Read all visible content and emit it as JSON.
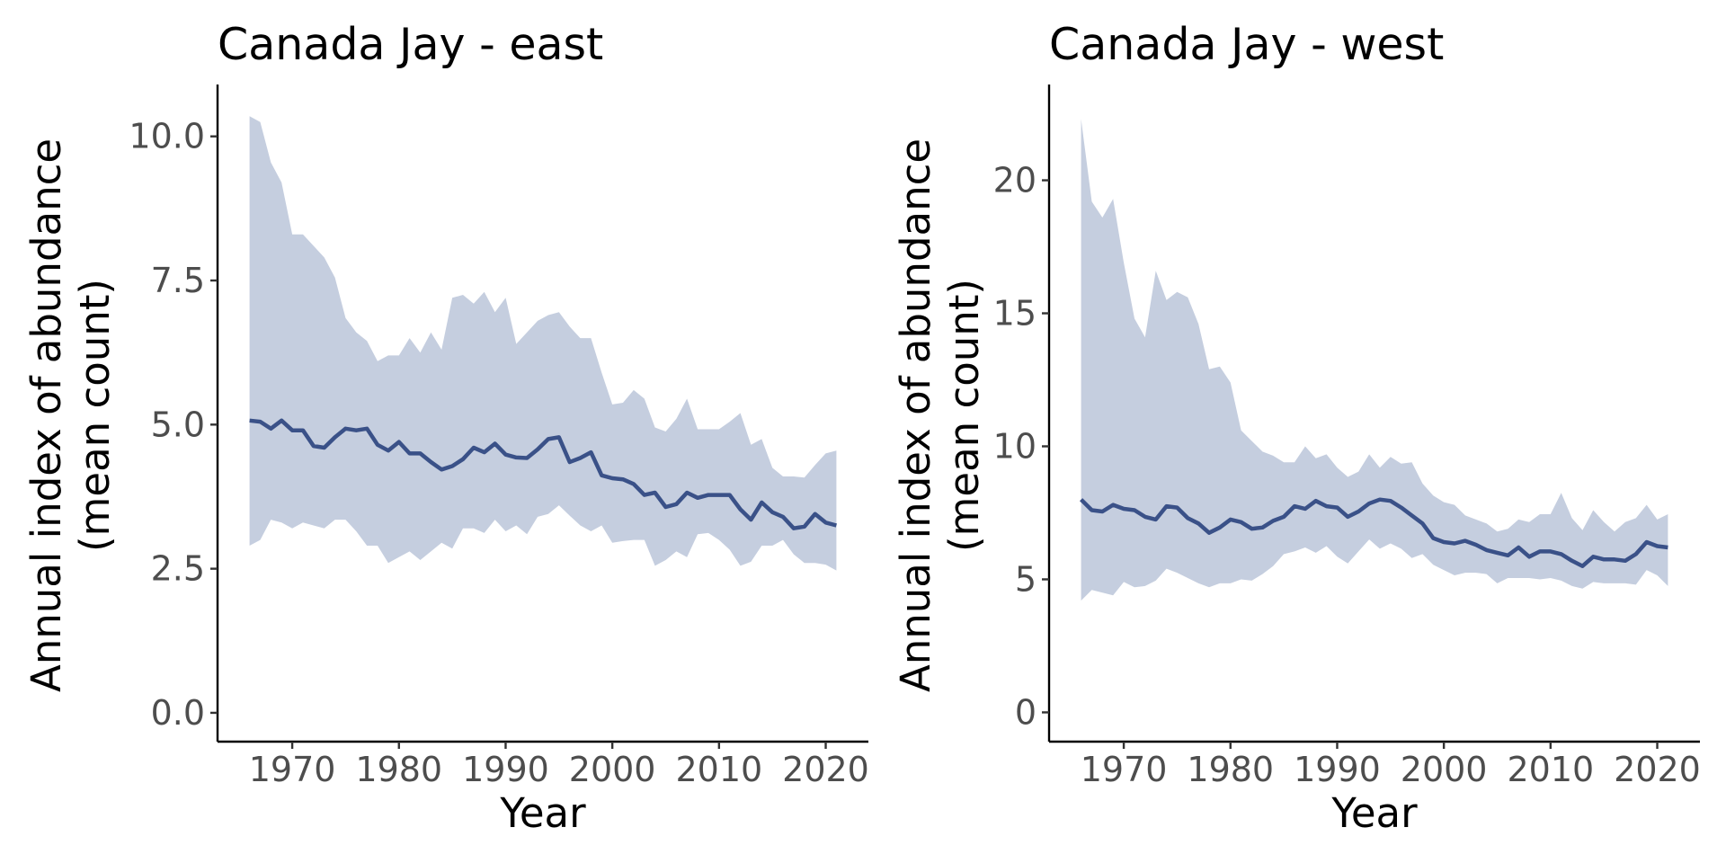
{
  "colors": {
    "band": "#c5cedf",
    "line": "#3a5188",
    "axis": "#000000",
    "tick_text": "#4d4d4d"
  },
  "chart_data": [
    {
      "type": "line",
      "title": "Canada Jay - east",
      "xlabel": "Year",
      "ylabel": [
        "Annual index of abundance",
        "(mean count)"
      ],
      "xlim": [
        1963,
        2024
      ],
      "ylim": [
        -0.5,
        10.9
      ],
      "xticks": [
        1970,
        1980,
        1990,
        2000,
        2010,
        2020
      ],
      "xtick_labels": [
        "1970",
        "1980",
        "1990",
        "2000",
        "2010",
        "2020"
      ],
      "yticks": [
        0,
        2.5,
        5,
        7.5,
        10
      ],
      "ytick_labels": [
        "0.0",
        "2.5",
        "5.0",
        "7.5",
        "10.0"
      ],
      "grid": false,
      "legend": "none",
      "x": [
        1966,
        1967,
        1968,
        1969,
        1970,
        1971,
        1972,
        1973,
        1974,
        1975,
        1976,
        1977,
        1978,
        1979,
        1980,
        1981,
        1982,
        1983,
        1984,
        1985,
        1986,
        1987,
        1988,
        1989,
        1990,
        1991,
        1992,
        1993,
        1994,
        1995,
        1996,
        1997,
        1998,
        1999,
        2000,
        2001,
        2002,
        2003,
        2004,
        2005,
        2006,
        2007,
        2008,
        2009,
        2010,
        2011,
        2012,
        2013,
        2014,
        2015,
        2016,
        2017,
        2018,
        2019,
        2020,
        2021
      ],
      "series": [
        {
          "values": [
            5.07,
            5.05,
            4.93,
            5.07,
            4.9,
            4.9,
            4.63,
            4.6,
            4.78,
            4.93,
            4.9,
            4.93,
            4.65,
            4.55,
            4.7,
            4.5,
            4.5,
            4.35,
            4.22,
            4.28,
            4.4,
            4.6,
            4.52,
            4.67,
            4.48,
            4.43,
            4.42,
            4.57,
            4.75,
            4.78,
            4.35,
            4.42,
            4.52,
            4.12,
            4.07,
            4.05,
            3.97,
            3.78,
            3.82,
            3.57,
            3.62,
            3.82,
            3.73,
            3.78,
            3.78,
            3.78,
            3.53,
            3.35,
            3.65,
            3.48,
            3.4,
            3.2,
            3.23,
            3.45,
            3.3,
            3.25
          ],
          "lower": [
            2.9,
            3.0,
            3.35,
            3.3,
            3.2,
            3.3,
            3.25,
            3.2,
            3.35,
            3.35,
            3.15,
            2.9,
            2.9,
            2.6,
            2.7,
            2.8,
            2.65,
            2.8,
            2.95,
            2.85,
            3.2,
            3.2,
            3.12,
            3.35,
            3.15,
            3.25,
            3.1,
            3.4,
            3.45,
            3.6,
            3.42,
            3.25,
            3.15,
            3.25,
            2.95,
            2.98,
            3.0,
            3.0,
            2.55,
            2.65,
            2.8,
            2.7,
            3.1,
            3.12,
            3.0,
            2.83,
            2.55,
            2.62,
            2.9,
            2.9,
            3.0,
            2.75,
            2.6,
            2.6,
            2.57,
            2.47
          ],
          "upper": [
            10.35,
            10.25,
            9.55,
            9.2,
            8.3,
            8.3,
            8.1,
            7.9,
            7.55,
            6.85,
            6.6,
            6.45,
            6.1,
            6.2,
            6.2,
            6.5,
            6.25,
            6.6,
            6.3,
            7.2,
            7.25,
            7.1,
            7.3,
            6.95,
            7.2,
            6.4,
            6.6,
            6.8,
            6.9,
            6.95,
            6.7,
            6.5,
            6.5,
            5.9,
            5.35,
            5.38,
            5.6,
            5.45,
            4.95,
            4.88,
            5.1,
            5.45,
            4.92,
            4.92,
            4.92,
            5.05,
            5.2,
            4.65,
            4.75,
            4.25,
            4.1,
            4.1,
            4.08,
            4.3,
            4.5,
            4.55
          ]
        }
      ]
    },
    {
      "type": "line",
      "title": "Canada Jay - west",
      "xlabel": "Year",
      "ylabel": [
        "Annual index of abundance",
        "(mean count)"
      ],
      "xlim": [
        1963,
        2024
      ],
      "ylim": [
        -1.1,
        23.6
      ],
      "xticks": [
        1970,
        1980,
        1990,
        2000,
        2010,
        2020
      ],
      "xtick_labels": [
        "1970",
        "1980",
        "1990",
        "2000",
        "2010",
        "2020"
      ],
      "yticks": [
        0,
        5,
        10,
        15,
        20
      ],
      "ytick_labels": [
        "0",
        "5",
        "10",
        "15",
        "20"
      ],
      "grid": false,
      "legend": "none",
      "x": [
        1966,
        1967,
        1968,
        1969,
        1970,
        1971,
        1972,
        1973,
        1974,
        1975,
        1976,
        1977,
        1978,
        1979,
        1980,
        1981,
        1982,
        1983,
        1984,
        1985,
        1986,
        1987,
        1988,
        1989,
        1990,
        1991,
        1992,
        1993,
        1994,
        1995,
        1996,
        1997,
        1998,
        1999,
        2000,
        2001,
        2002,
        2003,
        2004,
        2005,
        2006,
        2007,
        2008,
        2009,
        2010,
        2011,
        2012,
        2013,
        2014,
        2015,
        2016,
        2017,
        2018,
        2019,
        2020,
        2021
      ],
      "series": [
        {
          "values": [
            8.0,
            7.6,
            7.55,
            7.8,
            7.65,
            7.6,
            7.35,
            7.25,
            7.75,
            7.7,
            7.3,
            7.1,
            6.75,
            6.95,
            7.25,
            7.15,
            6.9,
            6.95,
            7.2,
            7.35,
            7.75,
            7.65,
            7.95,
            7.75,
            7.7,
            7.35,
            7.55,
            7.85,
            8.0,
            7.95,
            7.7,
            7.4,
            7.1,
            6.55,
            6.4,
            6.35,
            6.45,
            6.3,
            6.1,
            6.0,
            5.9,
            6.2,
            5.85,
            6.05,
            6.05,
            5.95,
            5.7,
            5.5,
            5.85,
            5.75,
            5.75,
            5.7,
            5.95,
            6.4,
            6.25,
            6.2
          ],
          "lower": [
            4.2,
            4.6,
            4.5,
            4.4,
            4.9,
            4.7,
            4.75,
            4.95,
            5.4,
            5.25,
            5.05,
            4.85,
            4.7,
            4.85,
            4.85,
            5.0,
            4.95,
            5.2,
            5.5,
            5.95,
            6.05,
            6.2,
            6.0,
            6.25,
            5.85,
            5.6,
            6.05,
            6.5,
            6.15,
            6.35,
            6.15,
            5.8,
            5.95,
            5.55,
            5.35,
            5.15,
            5.25,
            5.25,
            5.2,
            4.85,
            5.05,
            5.05,
            5.05,
            5.0,
            5.05,
            4.95,
            4.75,
            4.65,
            4.9,
            4.85,
            4.85,
            4.85,
            4.8,
            5.35,
            5.15,
            4.75
          ],
          "upper": [
            22.3,
            19.2,
            18.6,
            19.3,
            16.9,
            14.8,
            14.1,
            16.6,
            15.5,
            15.8,
            15.6,
            14.6,
            12.9,
            13.0,
            12.4,
            10.6,
            10.2,
            9.8,
            9.65,
            9.4,
            9.4,
            10.0,
            9.55,
            9.7,
            9.2,
            8.85,
            9.05,
            9.7,
            9.2,
            9.6,
            9.35,
            9.4,
            8.6,
            8.15,
            7.9,
            7.8,
            7.4,
            7.25,
            7.1,
            6.8,
            6.9,
            7.25,
            7.15,
            7.45,
            7.45,
            8.25,
            7.3,
            6.85,
            7.6,
            7.15,
            6.8,
            7.15,
            7.3,
            7.8,
            7.25,
            7.45
          ]
        }
      ]
    }
  ]
}
